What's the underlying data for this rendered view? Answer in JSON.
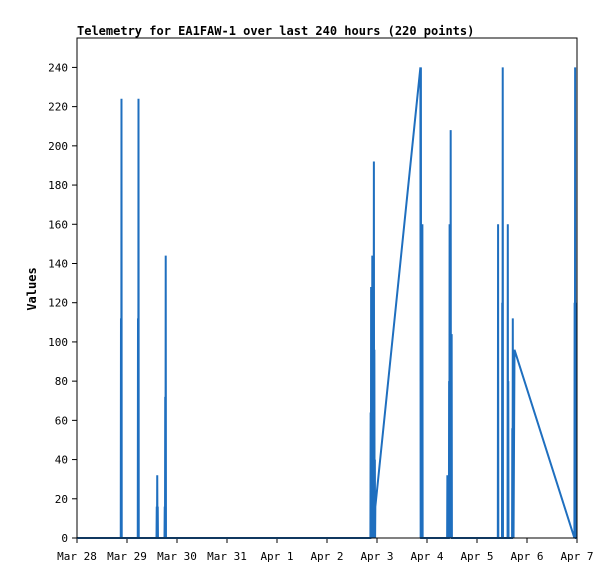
{
  "chart_data": {
    "type": "line",
    "title": "Telemetry for EA1FAW-1 over last 240 hours (220 points)",
    "ylabel": "Values",
    "xlabel": "",
    "xlim": [
      "2024-03-28T00:00",
      "2024-04-07T00:00"
    ],
    "ylim": [
      0,
      255
    ],
    "yticks": [
      0,
      20,
      40,
      60,
      80,
      100,
      120,
      140,
      160,
      180,
      200,
      220,
      240
    ],
    "xticks": [
      {
        "label": "Mar 28",
        "t": "2024-03-28T00:00"
      },
      {
        "label": "Mar 29",
        "t": "2024-03-29T00:00"
      },
      {
        "label": "Mar 30",
        "t": "2024-03-30T00:00"
      },
      {
        "label": "Mar 31",
        "t": "2024-03-31T00:00"
      },
      {
        "label": "Apr 1",
        "t": "2024-04-01T00:00"
      },
      {
        "label": "Apr 2",
        "t": "2024-04-02T00:00"
      },
      {
        "label": "Apr 3",
        "t": "2024-04-03T00:00"
      },
      {
        "label": "Apr 4",
        "t": "2024-04-04T00:00"
      },
      {
        "label": "Apr 5",
        "t": "2024-04-05T00:00"
      },
      {
        "label": "Apr 6",
        "t": "2024-04-06T00:00"
      },
      {
        "label": "Apr 7",
        "t": "2024-04-07T00:00"
      }
    ],
    "grid": false,
    "colors": {
      "line": "#1f6fbf",
      "axes": "#000000",
      "background": "#ffffff"
    },
    "series": [
      {
        "values": [
          [
            "2024-03-28T00:00",
            0
          ],
          [
            "2024-03-28T21:00",
            0
          ],
          [
            "2024-03-28T21:07",
            112
          ],
          [
            "2024-03-28T21:14",
            0
          ],
          [
            "2024-03-28T21:21",
            224
          ],
          [
            "2024-03-28T21:28",
            0
          ],
          [
            "2024-03-29T05:10",
            0
          ],
          [
            "2024-03-29T05:17",
            112
          ],
          [
            "2024-03-29T05:24",
            0
          ],
          [
            "2024-03-29T05:31",
            224
          ],
          [
            "2024-03-29T05:38",
            0
          ],
          [
            "2024-03-29T14:10",
            0
          ],
          [
            "2024-03-29T14:17",
            16
          ],
          [
            "2024-03-29T14:24",
            0
          ],
          [
            "2024-03-29T14:31",
            32
          ],
          [
            "2024-03-29T14:38",
            0
          ],
          [
            "2024-03-29T14:45",
            16
          ],
          [
            "2024-03-29T14:52",
            0
          ],
          [
            "2024-03-29T18:00",
            0
          ],
          [
            "2024-03-29T18:07",
            16
          ],
          [
            "2024-03-29T18:14",
            0
          ],
          [
            "2024-03-29T18:21",
            72
          ],
          [
            "2024-03-29T18:28",
            0
          ],
          [
            "2024-03-29T18:35",
            144
          ],
          [
            "2024-03-29T18:42",
            0
          ],
          [
            "2024-04-02T20:50",
            0
          ],
          [
            "2024-04-02T20:57",
            64
          ],
          [
            "2024-04-02T21:04",
            0
          ],
          [
            "2024-04-02T21:11",
            128
          ],
          [
            "2024-04-02T21:18",
            0
          ],
          [
            "2024-04-02T21:25",
            128
          ],
          [
            "2024-04-02T21:32",
            0
          ],
          [
            "2024-04-02T21:45",
            144
          ],
          [
            "2024-04-02T21:52",
            0
          ],
          [
            "2024-04-02T22:00",
            128
          ],
          [
            "2024-04-02T22:07",
            0
          ],
          [
            "2024-04-02T22:14",
            128
          ],
          [
            "2024-04-02T22:21",
            0
          ],
          [
            "2024-04-02T22:30",
            192
          ],
          [
            "2024-04-02T22:37",
            0
          ],
          [
            "2024-04-02T22:44",
            96
          ],
          [
            "2024-04-02T22:51",
            0
          ],
          [
            "2024-04-02T22:58",
            40
          ],
          [
            "2024-04-02T23:05",
            0
          ],
          [
            "2024-04-02T23:12",
            16
          ],
          [
            "2024-04-03T20:50",
            240
          ],
          [
            "2024-04-03T20:57",
            0
          ],
          [
            "2024-04-03T21:04",
            240
          ],
          [
            "2024-04-03T21:11",
            0
          ],
          [
            "2024-04-03T21:40",
            0
          ],
          [
            "2024-04-03T21:47",
            160
          ],
          [
            "2024-04-03T21:54",
            0
          ],
          [
            "2024-04-04T09:40",
            0
          ],
          [
            "2024-04-04T09:47",
            32
          ],
          [
            "2024-04-04T09:54",
            0
          ],
          [
            "2024-04-04T10:01",
            16
          ],
          [
            "2024-04-04T10:08",
            0
          ],
          [
            "2024-04-04T10:30",
            0
          ],
          [
            "2024-04-04T10:37",
            80
          ],
          [
            "2024-04-04T10:44",
            0
          ],
          [
            "2024-04-04T10:51",
            160
          ],
          [
            "2024-04-04T10:58",
            24
          ],
          [
            "2024-04-04T11:15",
            0
          ],
          [
            "2024-04-04T11:22",
            208
          ],
          [
            "2024-04-04T11:29",
            24
          ],
          [
            "2024-04-04T11:36",
            104
          ],
          [
            "2024-04-04T11:43",
            0
          ],
          [
            "2024-04-04T11:50",
            104
          ],
          [
            "2024-04-04T11:57",
            0
          ],
          [
            "2024-04-05T10:00",
            0
          ],
          [
            "2024-04-05T10:07",
            160
          ],
          [
            "2024-04-05T10:14",
            0
          ],
          [
            "2024-04-05T12:00",
            0
          ],
          [
            "2024-04-05T12:07",
            120
          ],
          [
            "2024-04-05T12:14",
            0
          ],
          [
            "2024-04-05T12:21",
            240
          ],
          [
            "2024-04-05T12:28",
            0
          ],
          [
            "2024-04-05T14:40",
            0
          ],
          [
            "2024-04-05T14:47",
            160
          ],
          [
            "2024-04-05T14:54",
            0
          ],
          [
            "2024-04-05T15:01",
            80
          ],
          [
            "2024-04-05T15:08",
            0
          ],
          [
            "2024-04-05T16:50",
            0
          ],
          [
            "2024-04-05T16:57",
            56
          ],
          [
            "2024-04-05T17:04",
            0
          ],
          [
            "2024-04-05T17:11",
            112
          ],
          [
            "2024-04-05T17:18",
            0
          ],
          [
            "2024-04-05T17:25",
            48
          ],
          [
            "2024-04-05T17:32",
            0
          ],
          [
            "2024-04-05T18:00",
            96
          ],
          [
            "2024-04-06T22:45",
            0
          ],
          [
            "2024-04-06T22:52",
            120
          ],
          [
            "2024-04-06T22:59",
            0
          ],
          [
            "2024-04-06T23:06",
            240
          ],
          [
            "2024-04-06T23:13",
            0
          ],
          [
            "2024-04-06T23:20",
            120
          ],
          [
            "2024-04-06T23:27",
            0
          ],
          [
            "2024-04-07T00:00",
            0
          ]
        ]
      }
    ]
  }
}
